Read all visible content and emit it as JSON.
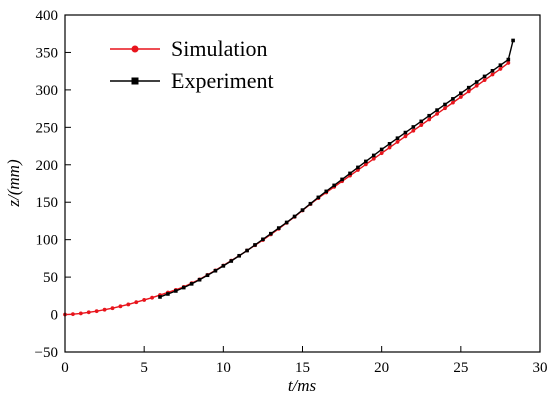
{
  "chart_data": {
    "type": "line",
    "xlabel": "t/ms",
    "ylabel": "z/(mm)",
    "xlim": [
      0,
      30
    ],
    "ylim": [
      -50,
      400
    ],
    "xticks": [
      "0",
      "5",
      "10",
      "15",
      "20",
      "25",
      "30"
    ],
    "yticks": [
      "−50",
      "0",
      "50",
      "100",
      "150",
      "200",
      "250",
      "300",
      "350",
      "400"
    ],
    "grid": false,
    "legend_position": "top-left",
    "series": [
      {
        "name": "Simulation",
        "color": "#e8141c",
        "marker": "circle",
        "x": [
          0,
          0.5,
          1,
          1.5,
          2,
          2.5,
          3,
          3.5,
          4,
          4.5,
          5,
          5.5,
          6,
          6.5,
          7,
          7.5,
          8,
          8.5,
          9,
          9.5,
          10,
          10.5,
          11,
          11.5,
          12,
          12.5,
          13,
          13.5,
          14,
          14.5,
          15,
          15.5,
          16,
          16.5,
          17,
          17.5,
          18,
          18.5,
          19,
          19.5,
          20,
          20.5,
          21,
          21.5,
          22,
          22.5,
          23,
          23.5,
          24,
          24.5,
          25,
          25.5,
          26,
          26.5,
          27,
          27.5,
          28
        ],
        "y": [
          0,
          0.5,
          1.5,
          3,
          4.5,
          6.5,
          8.5,
          11,
          13.5,
          16.5,
          19.5,
          22.5,
          26,
          29.5,
          33,
          37,
          42,
          47,
          53,
          59,
          65.5,
          72,
          78.5,
          85.5,
          92.5,
          99.5,
          107,
          114.5,
          122.5,
          130.5,
          139,
          147.5,
          155.5,
          163,
          170.5,
          178,
          185.5,
          193,
          200.5,
          208,
          215.5,
          223,
          230.5,
          238,
          245.5,
          253,
          260.5,
          268,
          275.5,
          283,
          290.5,
          298,
          305.5,
          313,
          320.5,
          328,
          336
        ]
      },
      {
        "name": "Experiment",
        "color": "#000000",
        "marker": "square",
        "x": [
          6,
          6.5,
          7,
          7.5,
          8,
          8.5,
          9,
          9.5,
          10,
          10.5,
          11,
          11.5,
          12,
          12.5,
          13,
          13.5,
          14,
          14.5,
          15,
          15.5,
          16,
          16.5,
          17,
          17.5,
          18,
          18.5,
          19,
          19.5,
          20,
          20.5,
          21,
          21.5,
          22,
          22.5,
          23,
          23.5,
          24,
          24.5,
          25,
          25.5,
          26,
          26.5,
          27,
          27.5,
          28,
          28.3
        ],
        "y": [
          23.5,
          27.5,
          31.5,
          36,
          41,
          46.5,
          52.5,
          58.5,
          65,
          71.5,
          78.5,
          85.5,
          93,
          100.5,
          108,
          115.5,
          123,
          131,
          139.5,
          148,
          156.5,
          164.5,
          172.5,
          180.5,
          188.5,
          196.5,
          204.5,
          212.5,
          220.5,
          228,
          235.5,
          243,
          250.5,
          258,
          265.5,
          273,
          280.5,
          288,
          295.5,
          303,
          310.5,
          318,
          325.5,
          333,
          340.5,
          366
        ]
      }
    ]
  }
}
